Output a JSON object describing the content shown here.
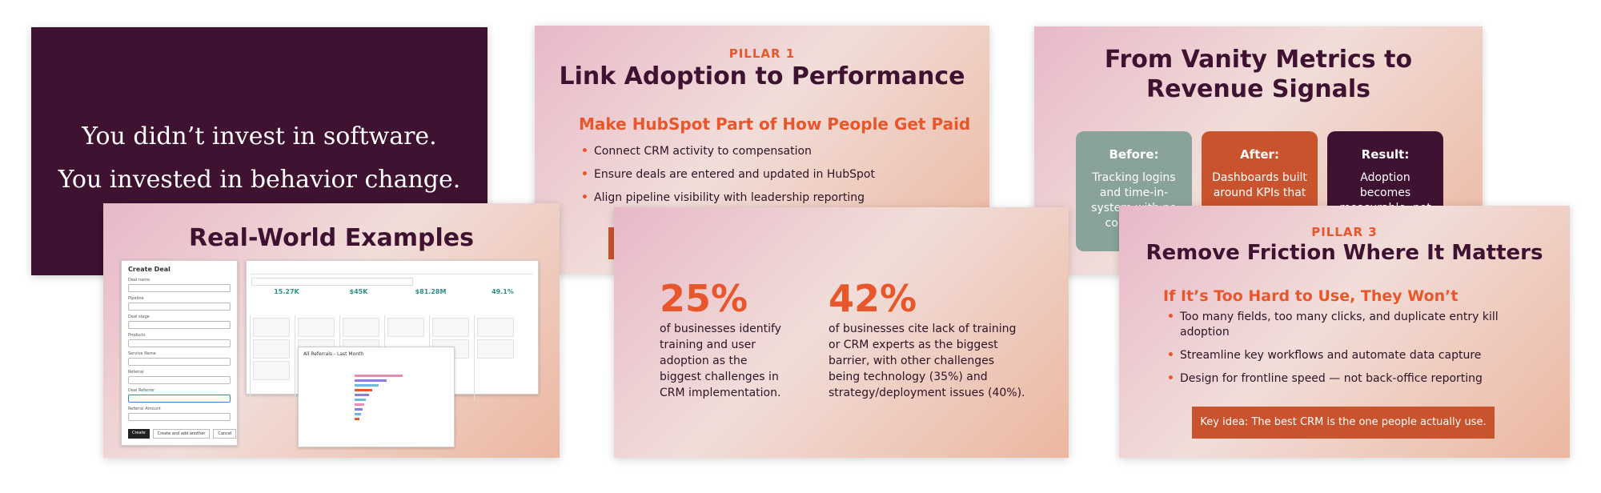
{
  "quote": {
    "line1": "You didn’t invest in software.",
    "line2": "You invested in behavior change."
  },
  "pillar1": {
    "kicker": "PILLAR 1",
    "title": "Link Adoption to Performance",
    "subtitle": "Make HubSpot Part of How People Get Paid",
    "bullets": [
      "Connect CRM activity to compensation",
      "Ensure deals are entered and updated in HubSpot",
      "Align pipeline visibility with leadership reporting"
    ]
  },
  "vanity": {
    "title_line1": "From Vanity Metrics to",
    "title_line2": "Revenue Signals",
    "before_head": "Before:",
    "before_text": "Tracking logins and time-in-system with no co… per…",
    "after_head": "After:",
    "after_text": "Dashboards built around KPIs that",
    "result_head": "Result:",
    "result_text": "Adoption becomes measurable, not",
    "colors": {
      "before": "#8aa39a",
      "after": "#c8532d",
      "result": "#3e1230"
    }
  },
  "examples": {
    "title": "Real-World Examples",
    "form_title": "Create Deal",
    "form_buttons": [
      "Create",
      "Create and add another",
      "Cancel"
    ],
    "kpis": [
      "15.27K",
      "$45K",
      "$81.28M",
      "49.1%"
    ],
    "chart_title": "All Referrals - Last Month"
  },
  "stats": {
    "stat1_value": "25%",
    "stat1_text_lines": [
      "of businesses identify",
      "training and user",
      "adoption as the",
      "biggest challenges in",
      "CRM implementation."
    ],
    "stat2_value": "42%",
    "stat2_text_lines": [
      "of businesses cite lack of training",
      "or CRM experts as the biggest",
      "barrier, with other challenges",
      "being technology (35%) and",
      "strategy/deployment issues (40%)."
    ]
  },
  "pillar3": {
    "kicker": "PILLAR 3",
    "title": "Remove Friction Where It Matters",
    "subtitle": "If It’s Too Hard to Use, They Won’t",
    "bullet1_line1": "Too many fields, too many clicks, and duplicate entry kill",
    "bullet1_line2": "adoption",
    "bullet2": "Streamline key workflows and automate data capture",
    "bullet3": "Design for frontline speed — not back-office reporting",
    "key_idea": "Key idea: The best CRM is the one people actually use."
  },
  "colors": {
    "accent": "#e8562c",
    "dark": "#3e1230",
    "key_box": "#c8532d"
  }
}
